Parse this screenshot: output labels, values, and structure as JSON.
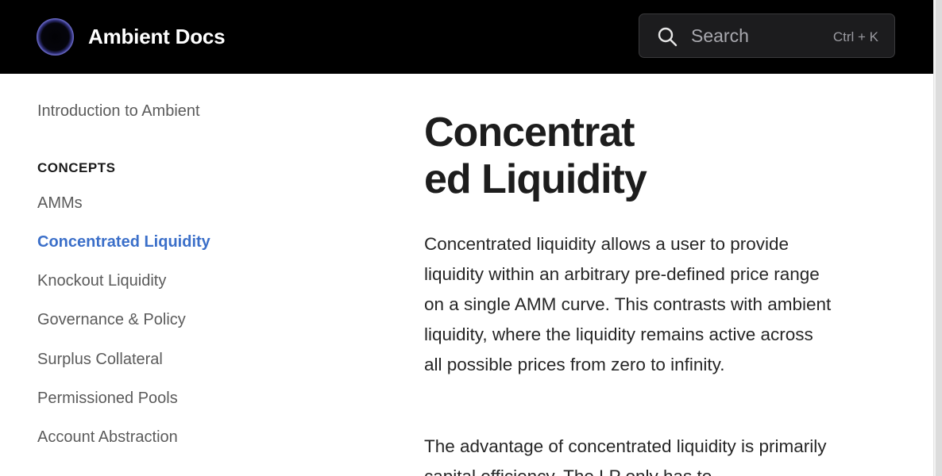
{
  "header": {
    "brand": "Ambient Docs",
    "search": {
      "placeholder": "Search",
      "shortcut": "Ctrl + K"
    }
  },
  "sidebar": {
    "intro": "Introduction to Ambient",
    "section_title": "CONCEPTS",
    "items": [
      {
        "label": "AMMs",
        "active": false
      },
      {
        "label": "Concentrated Liquidity",
        "active": true
      },
      {
        "label": "Knockout Liquidity",
        "active": false
      },
      {
        "label": "Governance & Policy",
        "active": false
      },
      {
        "label": "Surplus Collateral",
        "active": false
      },
      {
        "label": "Permissioned Pools",
        "active": false
      },
      {
        "label": "Account Abstraction",
        "active": false
      }
    ]
  },
  "main": {
    "title_line1": "Concentrat",
    "title_line2": "ed Liquidity",
    "paragraphs": [
      "Concentrated liquidity allows a user to provide liquidity within an arbitrary pre-defined price range on a single AMM curve. This contrasts with ambient liquidity, where the liquidity remains active across all possible prices from zero to infinity.",
      "The advantage of concentrated liquidity is primarily capital efficiency. The LP only has to"
    ]
  },
  "colors": {
    "header_bg": "#000000",
    "active_link": "#3b6fc9",
    "link": "#5b5b5b",
    "text": "#262626"
  }
}
